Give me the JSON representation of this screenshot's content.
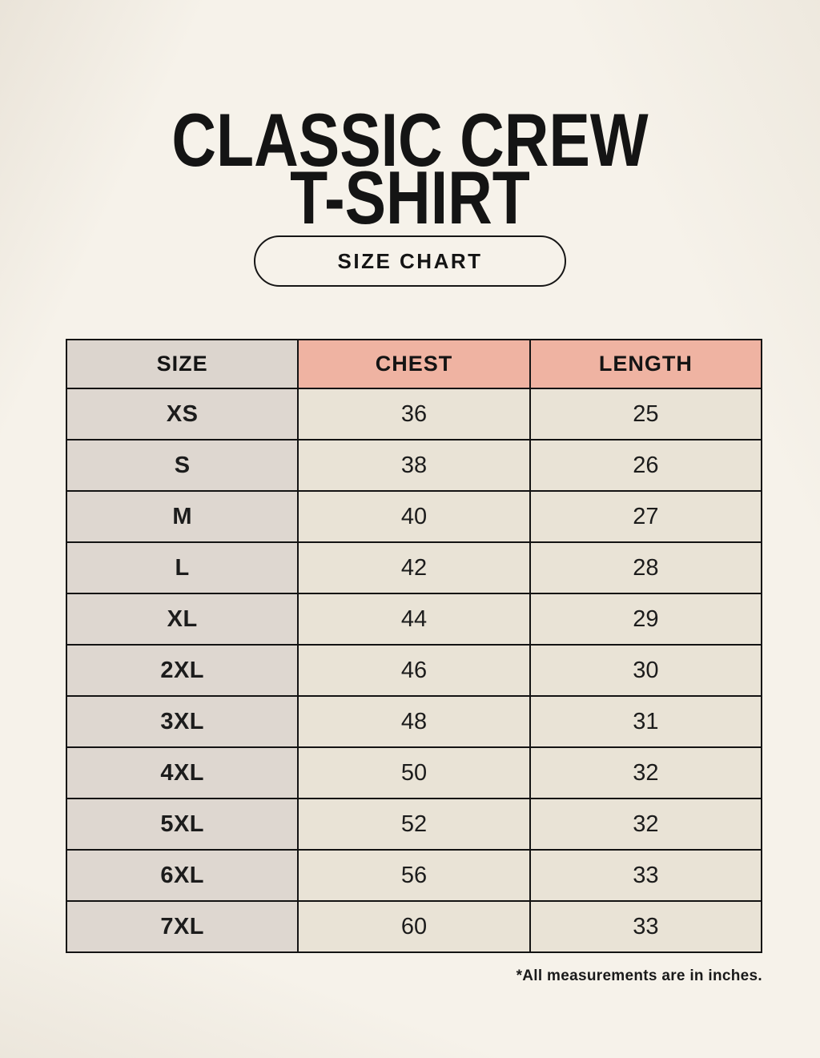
{
  "page": {
    "title_line1": "CLASSIC CREW",
    "title_line2": "T-SHIRT",
    "button_label": "SIZE CHART",
    "footnote": "*All measurements are in inches."
  },
  "colors": {
    "background": "#f6f2ea",
    "header_size_bg": "#dcd5ce",
    "header_measure_bg": "#efb3a2",
    "size_column_bg": "#ded7d0",
    "value_cell_bg": "#e9e3d6",
    "border": "#131313",
    "text": "#1a1a1a"
  },
  "chart_data": {
    "type": "table",
    "title": "Classic Crew T-Shirt Size Chart",
    "columns": [
      "SIZE",
      "CHEST",
      "LENGTH"
    ],
    "rows": [
      [
        "XS",
        36,
        25
      ],
      [
        "S",
        38,
        26
      ],
      [
        "M",
        40,
        27
      ],
      [
        "L",
        42,
        28
      ],
      [
        "XL",
        44,
        29
      ],
      [
        "2XL",
        46,
        30
      ],
      [
        "3XL",
        48,
        31
      ],
      [
        "4XL",
        50,
        32
      ],
      [
        "5XL",
        52,
        32
      ],
      [
        "6XL",
        56,
        33
      ],
      [
        "7XL",
        60,
        33
      ]
    ],
    "units_note": "*All measurements are in inches."
  }
}
